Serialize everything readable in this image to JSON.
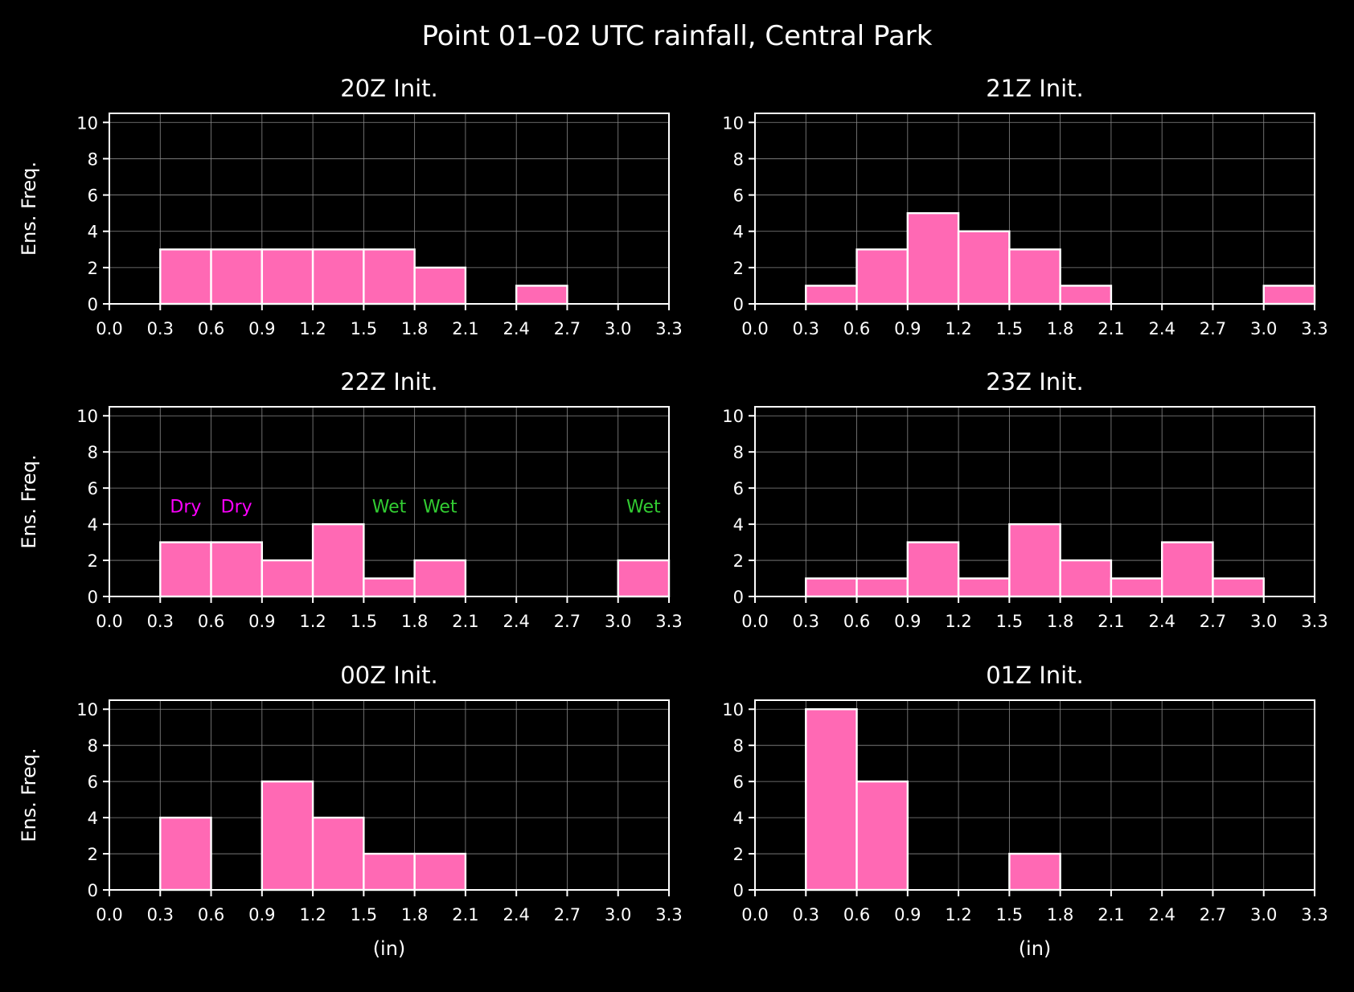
{
  "figure_title": "Point 01–02 UTC rainfall, Central Park",
  "colors": {
    "background": "#000000",
    "bar_fill": "#ff69b4",
    "bar_edge": "#ffffff",
    "grid": "#888888",
    "dry_label": "#ff00ff",
    "wet_label": "#32cd32"
  },
  "chart_data": [
    {
      "type": "bar",
      "title": "20Z Init.",
      "xlabel": "",
      "ylabel": "Ens. Freq.",
      "bin_edges": [
        0.0,
        0.3,
        0.6,
        0.9,
        1.2,
        1.5,
        1.8,
        2.1,
        2.4,
        2.7,
        3.0,
        3.3
      ],
      "values": [
        0,
        3,
        3,
        3,
        3,
        3,
        2,
        0,
        1,
        0,
        0
      ],
      "xlim": [
        0.0,
        3.3
      ],
      "ylim": [
        0,
        10.5
      ],
      "xticks": [
        "0.0",
        "0.3",
        "0.6",
        "0.9",
        "1.2",
        "1.5",
        "1.8",
        "2.1",
        "2.4",
        "2.7",
        "3.0",
        "3.3"
      ],
      "yticks": [
        "0",
        "2",
        "4",
        "6",
        "8",
        "10"
      ],
      "grid": true,
      "annotations": []
    },
    {
      "type": "bar",
      "title": "21Z Init.",
      "xlabel": "",
      "ylabel": "",
      "bin_edges": [
        0.0,
        0.3,
        0.6,
        0.9,
        1.2,
        1.5,
        1.8,
        2.1,
        2.4,
        2.7,
        3.0,
        3.3
      ],
      "values": [
        0,
        1,
        3,
        5,
        4,
        3,
        1,
        0,
        0,
        0,
        1
      ],
      "xlim": [
        0.0,
        3.3
      ],
      "ylim": [
        0,
        10.5
      ],
      "xticks": [
        "0.0",
        "0.3",
        "0.6",
        "0.9",
        "1.2",
        "1.5",
        "1.8",
        "2.1",
        "2.4",
        "2.7",
        "3.0",
        "3.3"
      ],
      "yticks": [
        "0",
        "2",
        "4",
        "6",
        "8",
        "10"
      ],
      "grid": true,
      "annotations": []
    },
    {
      "type": "bar",
      "title": "22Z Init.",
      "xlabel": "",
      "ylabel": "Ens. Freq.",
      "bin_edges": [
        0.0,
        0.3,
        0.6,
        0.9,
        1.2,
        1.5,
        1.8,
        2.1,
        2.4,
        2.7,
        3.0,
        3.3
      ],
      "values": [
        0,
        3,
        3,
        2,
        4,
        1,
        2,
        0,
        0,
        0,
        2
      ],
      "xlim": [
        0.0,
        3.3
      ],
      "ylim": [
        0,
        10.5
      ],
      "xticks": [
        "0.0",
        "0.3",
        "0.6",
        "0.9",
        "1.2",
        "1.5",
        "1.8",
        "2.1",
        "2.4",
        "2.7",
        "3.0",
        "3.3"
      ],
      "yticks": [
        "0",
        "2",
        "4",
        "6",
        "8",
        "10"
      ],
      "grid": true,
      "annotations": [
        {
          "text": "Dry",
          "x": 0.45,
          "y": 5,
          "kind": "dry"
        },
        {
          "text": "Dry",
          "x": 0.75,
          "y": 5,
          "kind": "dry"
        },
        {
          "text": "Wet",
          "x": 1.65,
          "y": 5,
          "kind": "wet"
        },
        {
          "text": "Wet",
          "x": 1.95,
          "y": 5,
          "kind": "wet"
        },
        {
          "text": "Wet",
          "x": 3.15,
          "y": 5,
          "kind": "wet"
        }
      ]
    },
    {
      "type": "bar",
      "title": "23Z Init.",
      "xlabel": "",
      "ylabel": "",
      "bin_edges": [
        0.0,
        0.3,
        0.6,
        0.9,
        1.2,
        1.5,
        1.8,
        2.1,
        2.4,
        2.7,
        3.0,
        3.3
      ],
      "values": [
        0,
        1,
        1,
        3,
        1,
        4,
        2,
        1,
        3,
        1,
        0
      ],
      "xlim": [
        0.0,
        3.3
      ],
      "ylim": [
        0,
        10.5
      ],
      "xticks": [
        "0.0",
        "0.3",
        "0.6",
        "0.9",
        "1.2",
        "1.5",
        "1.8",
        "2.1",
        "2.4",
        "2.7",
        "3.0",
        "3.3"
      ],
      "yticks": [
        "0",
        "2",
        "4",
        "6",
        "8",
        "10"
      ],
      "grid": true,
      "annotations": []
    },
    {
      "type": "bar",
      "title": "00Z Init.",
      "xlabel": "(in)",
      "ylabel": "Ens. Freq.",
      "bin_edges": [
        0.0,
        0.3,
        0.6,
        0.9,
        1.2,
        1.5,
        1.8,
        2.1,
        2.4,
        2.7,
        3.0,
        3.3
      ],
      "values": [
        0,
        4,
        0,
        6,
        4,
        2,
        2,
        0,
        0,
        0,
        0
      ],
      "xlim": [
        0.0,
        3.3
      ],
      "ylim": [
        0,
        10.5
      ],
      "xticks": [
        "0.0",
        "0.3",
        "0.6",
        "0.9",
        "1.2",
        "1.5",
        "1.8",
        "2.1",
        "2.4",
        "2.7",
        "3.0",
        "3.3"
      ],
      "yticks": [
        "0",
        "2",
        "4",
        "6",
        "8",
        "10"
      ],
      "grid": true,
      "annotations": []
    },
    {
      "type": "bar",
      "title": "01Z Init.",
      "xlabel": "(in)",
      "ylabel": "",
      "bin_edges": [
        0.0,
        0.3,
        0.6,
        0.9,
        1.2,
        1.5,
        1.8,
        2.1,
        2.4,
        2.7,
        3.0,
        3.3
      ],
      "values": [
        0,
        10,
        6,
        0,
        0,
        2,
        0,
        0,
        0,
        0,
        0
      ],
      "xlim": [
        0.0,
        3.3
      ],
      "ylim": [
        0,
        10.5
      ],
      "xticks": [
        "0.0",
        "0.3",
        "0.6",
        "0.9",
        "1.2",
        "1.5",
        "1.8",
        "2.1",
        "2.4",
        "2.7",
        "3.0",
        "3.3"
      ],
      "yticks": [
        "0",
        "2",
        "4",
        "6",
        "8",
        "10"
      ],
      "grid": true,
      "annotations": []
    }
  ]
}
